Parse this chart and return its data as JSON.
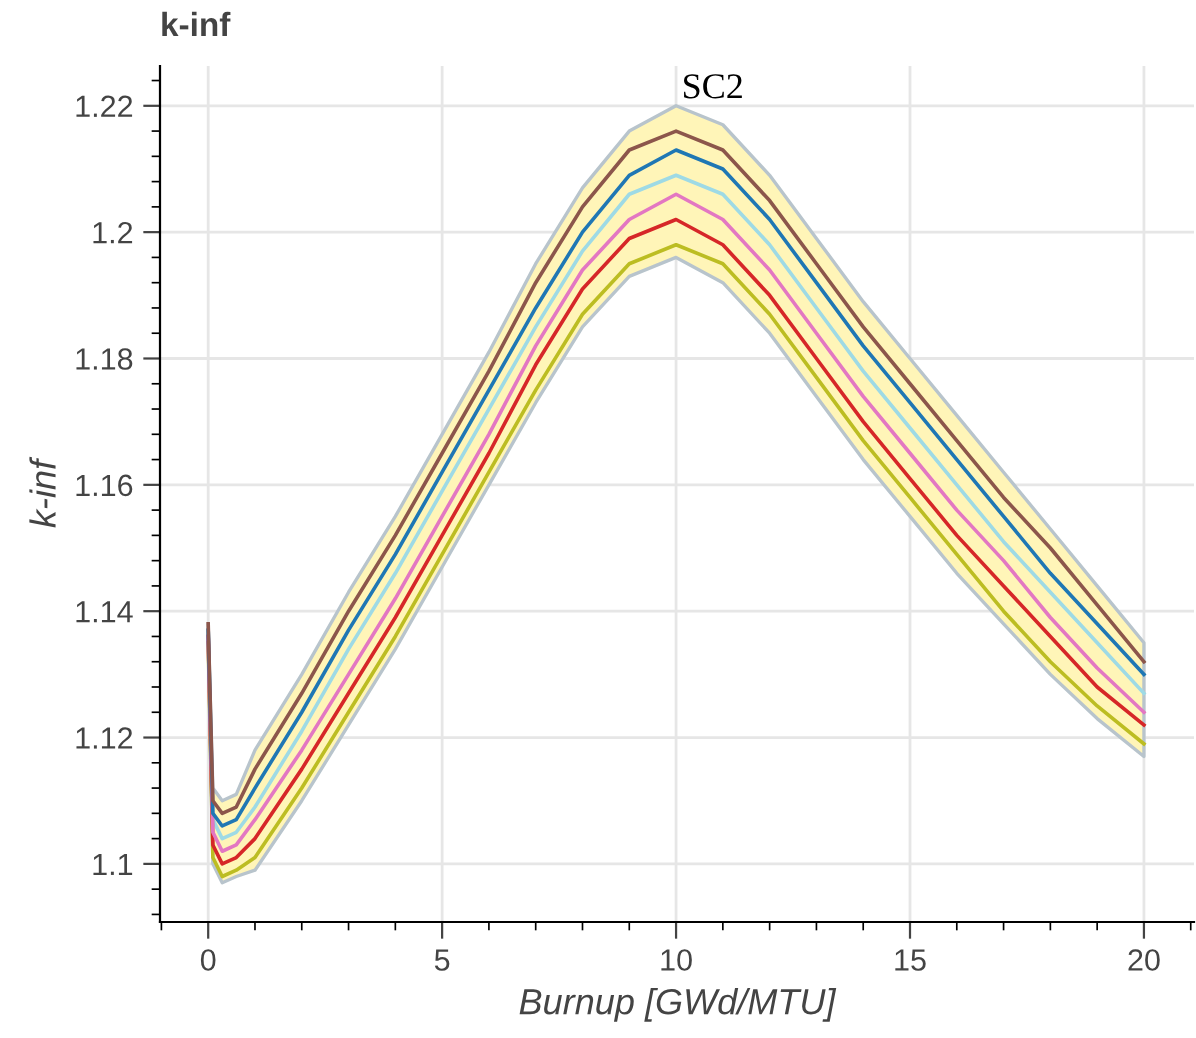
{
  "chart_data": {
    "type": "line",
    "title": "k-inf",
    "xlabel": "Burnup [GWd/MTU]",
    "ylabel": "k-inf",
    "x": [
      0,
      0.1,
      0.3,
      0.6,
      1,
      2,
      3,
      4,
      5,
      6,
      7,
      8,
      9,
      10,
      11,
      12,
      13,
      14,
      15,
      16,
      17,
      18,
      19,
      20
    ],
    "series": [
      {
        "color": "#9edae5",
        "values": [
          1.137,
          1.107,
          1.104,
          1.105,
          1.109,
          1.121,
          1.134,
          1.146,
          1.159,
          1.172,
          1.185,
          1.197,
          1.206,
          1.209,
          1.206,
          1.198,
          1.188,
          1.178,
          1.169,
          1.16,
          1.151,
          1.143,
          1.135,
          1.127
        ],
        "lower": [
          1.135,
          1.1,
          1.097,
          1.098,
          1.099,
          1.11,
          1.122,
          1.134,
          1.147,
          1.16,
          1.173,
          1.185,
          1.193,
          1.196,
          1.192,
          1.184,
          1.174,
          1.164,
          1.155,
          1.146,
          1.138,
          1.13,
          1.123,
          1.117
        ],
        "upper": [
          1.138,
          1.112,
          1.11,
          1.111,
          1.118,
          1.13,
          1.143,
          1.155,
          1.168,
          1.181,
          1.195,
          1.207,
          1.216,
          1.22,
          1.217,
          1.209,
          1.199,
          1.189,
          1.18,
          1.171,
          1.162,
          1.153,
          1.144,
          1.135
        ]
      },
      {
        "color": "#bcbd22",
        "values": [
          1.135,
          1.101,
          1.098,
          1.099,
          1.101,
          1.112,
          1.124,
          1.136,
          1.149,
          1.162,
          1.175,
          1.187,
          1.195,
          1.198,
          1.195,
          1.187,
          1.177,
          1.167,
          1.158,
          1.149,
          1.14,
          1.132,
          1.125,
          1.119
        ]
      },
      {
        "color": "#d62728",
        "values": [
          1.136,
          1.103,
          1.1,
          1.101,
          1.104,
          1.115,
          1.127,
          1.139,
          1.152,
          1.165,
          1.179,
          1.191,
          1.199,
          1.202,
          1.198,
          1.19,
          1.18,
          1.17,
          1.161,
          1.152,
          1.144,
          1.136,
          1.128,
          1.122
        ]
      },
      {
        "color": "#e377c2",
        "values": [
          1.136,
          1.105,
          1.102,
          1.103,
          1.107,
          1.118,
          1.13,
          1.142,
          1.155,
          1.168,
          1.182,
          1.194,
          1.202,
          1.206,
          1.202,
          1.194,
          1.184,
          1.174,
          1.165,
          1.156,
          1.148,
          1.139,
          1.131,
          1.124
        ]
      },
      {
        "color": "#1f77b4",
        "values": [
          1.137,
          1.108,
          1.106,
          1.107,
          1.112,
          1.124,
          1.137,
          1.149,
          1.162,
          1.175,
          1.188,
          1.2,
          1.209,
          1.213,
          1.21,
          1.202,
          1.192,
          1.182,
          1.173,
          1.164,
          1.155,
          1.146,
          1.138,
          1.13
        ]
      },
      {
        "color": "#8c564b",
        "values": [
          1.138,
          1.11,
          1.108,
          1.109,
          1.115,
          1.127,
          1.14,
          1.152,
          1.165,
          1.178,
          1.192,
          1.204,
          1.213,
          1.216,
          1.213,
          1.205,
          1.195,
          1.185,
          1.176,
          1.167,
          1.158,
          1.15,
          1.141,
          1.132
        ]
      }
    ],
    "xlim": [
      -1.03,
      21.07
    ],
    "ylim": [
      1.0908,
      1.2263
    ],
    "xticks": [
      0,
      5,
      10,
      15,
      20
    ],
    "yticks": [
      1.1,
      1.12,
      1.14,
      1.16,
      1.18,
      1.2,
      1.22
    ],
    "grid": true,
    "legend": false,
    "marker": "none",
    "line_style": "solid",
    "annotations": [
      {
        "text": "SC2",
        "x": 10,
        "y": 1.22
      }
    ]
  }
}
